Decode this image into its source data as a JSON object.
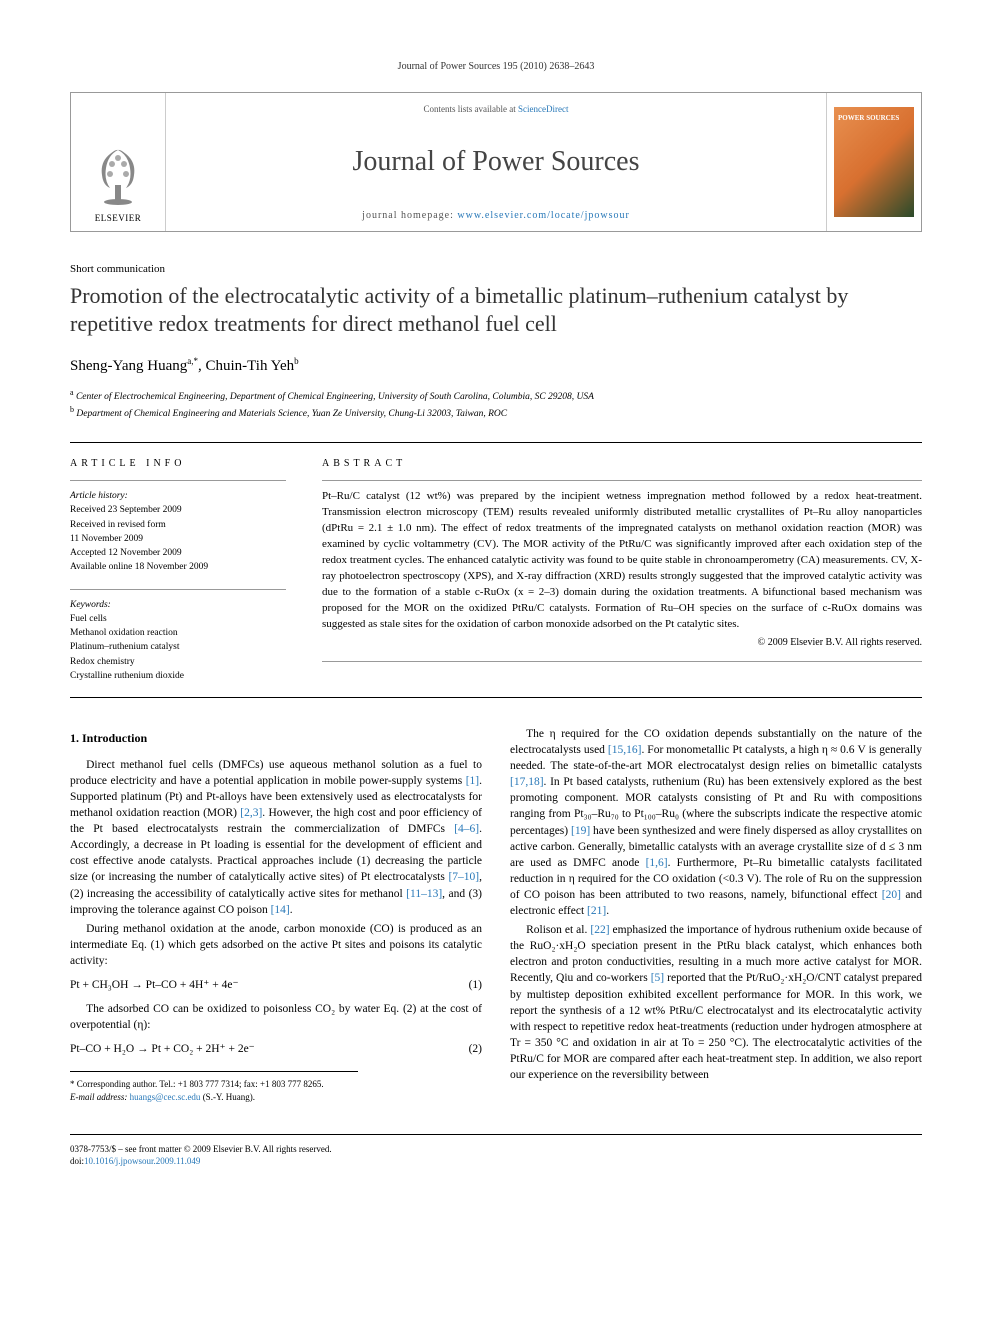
{
  "header": {
    "running_head": "Journal of Power Sources 195 (2010) 2638–2643"
  },
  "masthead": {
    "contents_prefix": "Contents lists available at ",
    "contents_link": "ScienceDirect",
    "journal_name": "Journal of Power Sources",
    "homepage_prefix": "journal homepage: ",
    "homepage_url": "www.elsevier.com/locate/jpowsour",
    "publisher_name": "ELSEVIER",
    "cover_title": "POWER SOURCES"
  },
  "article": {
    "type": "Short communication",
    "title": "Promotion of the electrocatalytic activity of a bimetallic platinum–ruthenium catalyst by repetitive redox treatments for direct methanol fuel cell",
    "authors_html": "Sheng-Yang Huang<sup>a,*</sup>, Chuin-Tih Yeh<sup>b</sup>",
    "affiliations": [
      {
        "sup": "a",
        "text": "Center of Electrochemical Engineering, Department of Chemical Engineering, University of South Carolina, Columbia, SC 29208, USA"
      },
      {
        "sup": "b",
        "text": "Department of Chemical Engineering and Materials Science, Yuan Ze University, Chung-Li 32003, Taiwan, ROC"
      }
    ]
  },
  "info": {
    "heading": "article info",
    "history_title": "Article history:",
    "history": [
      "Received 23 September 2009",
      "Received in revised form",
      "11 November 2009",
      "Accepted 12 November 2009",
      "Available online 18 November 2009"
    ],
    "keywords_title": "Keywords:",
    "keywords": [
      "Fuel cells",
      "Methanol oxidation reaction",
      "Platinum–ruthenium catalyst",
      "Redox chemistry",
      "Crystalline ruthenium dioxide"
    ]
  },
  "abstract": {
    "heading": "abstract",
    "text": "Pt–Ru/C catalyst (12 wt%) was prepared by the incipient wetness impregnation method followed by a redox heat-treatment. Transmission electron microscopy (TEM) results revealed uniformly distributed metallic crystallites of Pt–Ru alloy nanoparticles (dPtRu = 2.1 ± 1.0 nm). The effect of redox treatments of the impregnated catalysts on methanol oxidation reaction (MOR) was examined by cyclic voltammetry (CV). The MOR activity of the PtRu/C was significantly improved after each oxidation step of the redox treatment cycles. The enhanced catalytic activity was found to be quite stable in chronoamperometry (CA) measurements. CV, X-ray photoelectron spectroscopy (XPS), and X-ray diffraction (XRD) results strongly suggested that the improved catalytic activity was due to the formation of a stable c-RuOx (x = 2–3) domain during the oxidation treatments. A bifunctional based mechanism was proposed for the MOR on the oxidized PtRu/C catalysts. Formation of Ru–OH species on the surface of c-RuOx domains was suggested as stale sites for the oxidation of carbon monoxide adsorbed on the Pt catalytic sites.",
    "copyright": "© 2009 Elsevier B.V. All rights reserved."
  },
  "body": {
    "h_intro": "1. Introduction",
    "p1": "Direct methanol fuel cells (DMFCs) use aqueous methanol solution as a fuel to produce electricity and have a potential application in mobile power-supply systems [1]. Supported platinum (Pt) and Pt-alloys have been extensively used as electrocatalysts for methanol oxidation reaction (MOR) [2,3]. However, the high cost and poor efficiency of the Pt based electrocatalysts restrain the commercialization of DMFCs [4–6]. Accordingly, a decrease in Pt loading is essential for the development of efficient and cost effective anode catalysts. Practical approaches include (1) decreasing the particle size (or increasing the number of catalytically active sites) of Pt electrocatalysts [7–10], (2) increasing the accessibility of catalytically active sites for methanol [11–13], and (3) improving the tolerance against CO poison [14].",
    "p2": "During methanol oxidation at the anode, carbon monoxide (CO) is produced as an intermediate Eq. (1) which gets adsorbed on the active Pt sites and poisons its catalytic activity:",
    "eq1": "Pt + CH₃OH → Pt–CO + 4H⁺ + 4e⁻",
    "eq1_num": "(1)",
    "p3": "The adsorbed CO can be oxidized to poisonless CO₂ by water Eq. (2) at the cost of overpotential (η):",
    "eq2": "Pt–CO + H₂O → Pt + CO₂ + 2H⁺ + 2e⁻",
    "eq2_num": "(2)",
    "p4": "The η required for the CO oxidation depends substantially on the nature of the electrocatalysts used [15,16]. For monometallic Pt catalysts, a high η ≈ 0.6 V is generally needed. The state-of-the-art MOR electrocatalyst design relies on bimetallic catalysts [17,18]. In Pt based catalysts, ruthenium (Ru) has been extensively explored as the best promoting component. MOR catalysts consisting of Pt and Ru with compositions ranging from Pt₃₀–Ru₇₀ to Pt₁₀₀–Ru₀ (where the subscripts indicate the respective atomic percentages) [19] have been synthesized and were finely dispersed as alloy crystallites on active carbon. Generally, bimetallic catalysts with an average crystallite size of d ≤ 3 nm are used as DMFC anode [1,6]. Furthermore, Pt–Ru bimetallic catalysts facilitated reduction in η required for the CO oxidation (<0.3 V). The role of Ru on the suppression of CO poison has been attributed to two reasons, namely, bifunctional effect [20] and electronic effect [21].",
    "p5": "Rolison et al. [22] emphasized the importance of hydrous ruthenium oxide because of the RuO₂·xH₂O speciation present in the PtRu black catalyst, which enhances both electron and proton conductivities, resulting in a much more active catalyst for MOR. Recently, Qiu and co-workers [5] reported that the Pt/RuO₂·xH₂O/CNT catalyst prepared by multistep deposition exhibited excellent performance for MOR. In this work, we report the synthesis of a 12 wt% PtRu/C electrocatalyst and its electrocatalytic activity with respect to repetitive redox heat-treatments (reduction under hydrogen atmosphere at Tr = 350 °C and oxidation in air at To = 250 °C). The electrocatalytic activities of the PtRu/C for MOR are compared after each heat-treatment step. In addition, we also report our experience on the reversibility between"
  },
  "corr": {
    "line1": "* Corresponding author. Tel.: +1 803 777 7314; fax: +1 803 777 8265.",
    "line2_prefix": "E-mail address: ",
    "email": "huangs@cec.sc.edu",
    "line2_suffix": " (S.-Y. Huang)."
  },
  "footer": {
    "left_line1": "0378-7753/$ – see front matter © 2009 Elsevier B.V. All rights reserved.",
    "doi_prefix": "doi:",
    "doi": "10.1016/j.jpowsour.2009.11.049"
  },
  "colors": {
    "link": "#2878b8",
    "text": "#000000",
    "rule": "#999999"
  }
}
